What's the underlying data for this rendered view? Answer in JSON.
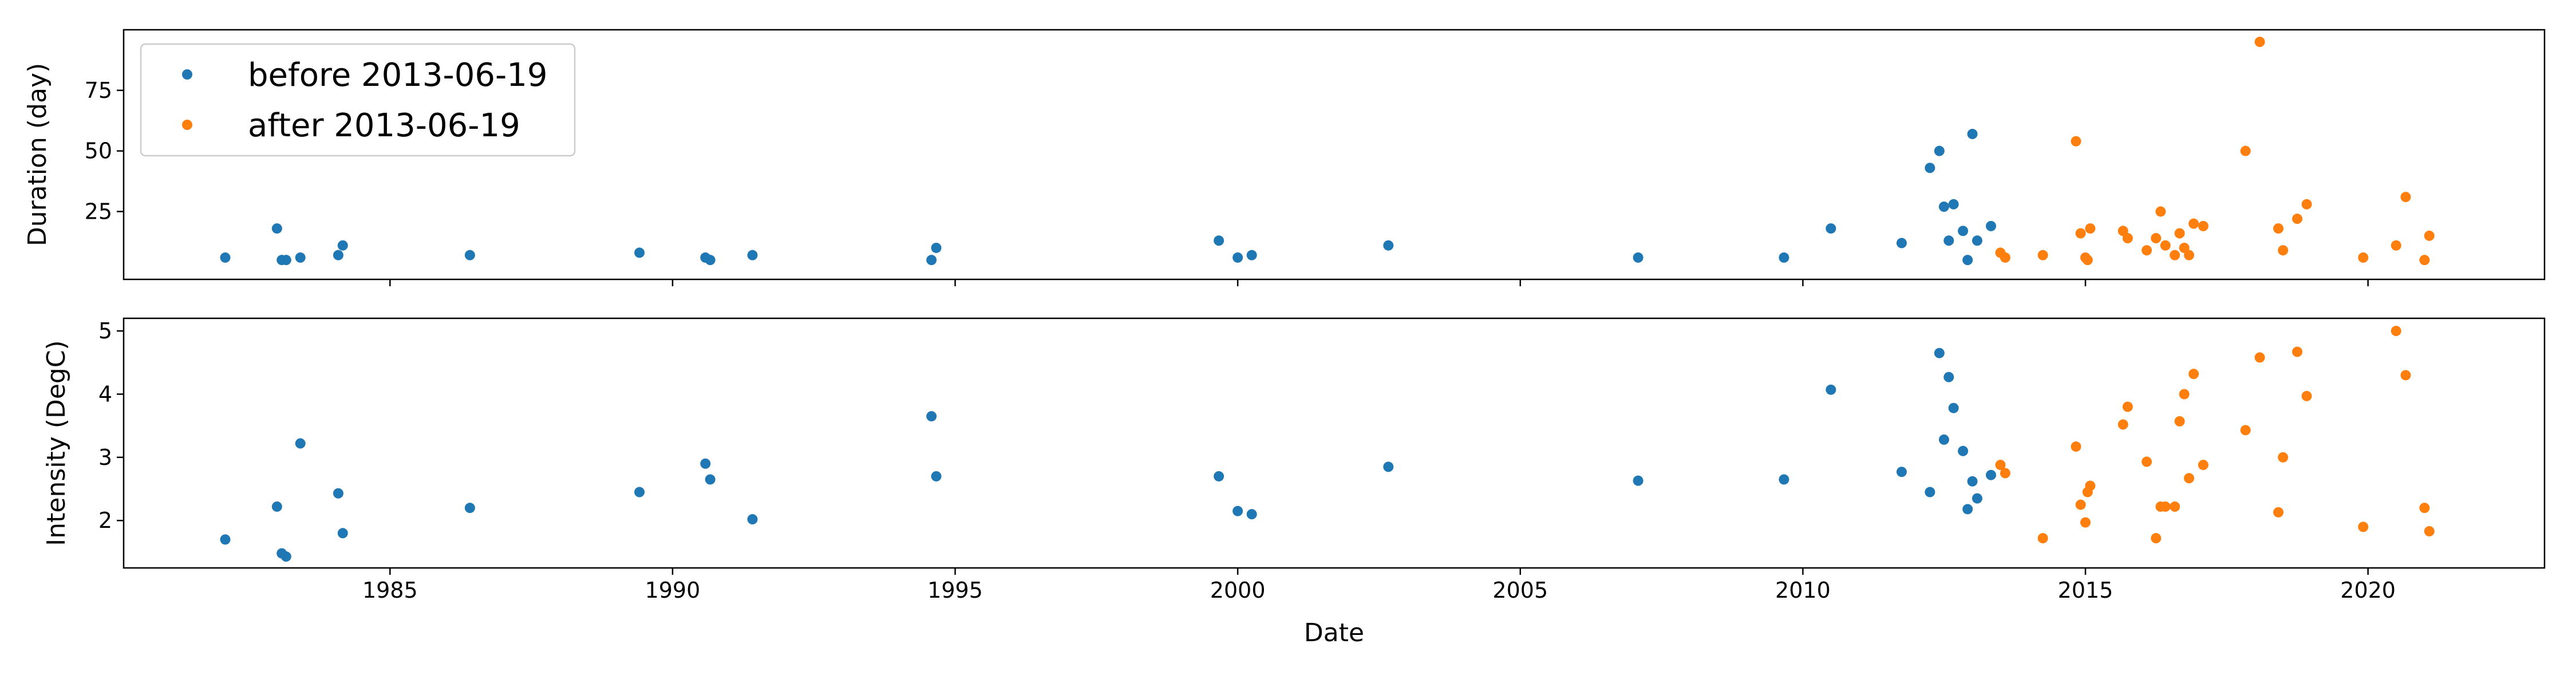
{
  "chart_data": [
    {
      "type": "scatter",
      "xlabel": "Date",
      "ylabel": "Duration (day)",
      "xlim": [
        "1980-04-15",
        "2023-02-15"
      ],
      "ylim": [
        -3,
        100
      ],
      "yticks": [
        25,
        50,
        75
      ],
      "xtick_labels": [
        "1985",
        "1990",
        "1995",
        "2000",
        "2005",
        "2010",
        "2015",
        "2020"
      ],
      "legend": {
        "position": "upper-left"
      },
      "series": [
        {
          "name": "before 2013-06-19",
          "color": "#1f77b4",
          "points": [
            [
              "1982-02-01",
              6
            ],
            [
              "1983-01-01",
              18
            ],
            [
              "1983-02-01",
              5
            ],
            [
              "1983-03-01",
              5
            ],
            [
              "1983-06-01",
              6
            ],
            [
              "1984-02-01",
              7
            ],
            [
              "1984-03-01",
              11
            ],
            [
              "1986-06-01",
              7
            ],
            [
              "1989-06-01",
              8
            ],
            [
              "1990-08-01",
              6
            ],
            [
              "1990-09-01",
              5
            ],
            [
              "1991-06-01",
              7
            ],
            [
              "1994-08-01",
              5
            ],
            [
              "1994-09-01",
              10
            ],
            [
              "1999-09-01",
              13
            ],
            [
              "2000-01-01",
              6
            ],
            [
              "2000-04-01",
              7
            ],
            [
              "2002-09-01",
              11
            ],
            [
              "2007-02-01",
              6
            ],
            [
              "2009-09-01",
              6
            ],
            [
              "2010-07-01",
              18
            ],
            [
              "2011-10-01",
              12
            ],
            [
              "2012-04-01",
              43
            ],
            [
              "2012-06-01",
              50
            ],
            [
              "2012-07-01",
              27
            ],
            [
              "2012-08-01",
              13
            ],
            [
              "2012-09-01",
              28
            ],
            [
              "2012-11-01",
              17
            ],
            [
              "2012-12-01",
              5
            ],
            [
              "2013-01-01",
              57
            ],
            [
              "2013-02-01",
              13
            ],
            [
              "2013-05-01",
              19
            ]
          ]
        },
        {
          "name": "after 2013-06-19",
          "color": "#ff7f0e",
          "points": [
            [
              "2013-07-01",
              8
            ],
            [
              "2013-08-01",
              6
            ],
            [
              "2014-04-01",
              7
            ],
            [
              "2014-11-01",
              54
            ],
            [
              "2014-12-01",
              16
            ],
            [
              "2015-01-01",
              6
            ],
            [
              "2015-01-15",
              5
            ],
            [
              "2015-02-01",
              18
            ],
            [
              "2015-09-01",
              17
            ],
            [
              "2015-10-01",
              14
            ],
            [
              "2016-02-01",
              9
            ],
            [
              "2016-04-01",
              14
            ],
            [
              "2016-05-01",
              25
            ],
            [
              "2016-06-01",
              11
            ],
            [
              "2016-08-01",
              7
            ],
            [
              "2016-09-01",
              16
            ],
            [
              "2016-10-01",
              10
            ],
            [
              "2016-11-01",
              7
            ],
            [
              "2016-12-01",
              20
            ],
            [
              "2017-02-01",
              19
            ],
            [
              "2017-11-01",
              50
            ],
            [
              "2018-02-01",
              95
            ],
            [
              "2018-06-01",
              18
            ],
            [
              "2018-07-01",
              9
            ],
            [
              "2018-10-01",
              22
            ],
            [
              "2018-12-01",
              28
            ],
            [
              "2019-12-01",
              6
            ],
            [
              "2020-07-01",
              11
            ],
            [
              "2020-09-01",
              31
            ],
            [
              "2021-01-01",
              5
            ],
            [
              "2021-02-01",
              15
            ]
          ]
        }
      ]
    },
    {
      "type": "scatter",
      "xlabel": "Date",
      "ylabel": "Intensity (DegC)",
      "xlim": [
        "1980-04-15",
        "2023-02-15"
      ],
      "ylim": [
        1.25,
        5.2
      ],
      "yticks": [
        2,
        3,
        4,
        5
      ],
      "xtick_labels": [
        "1985",
        "1990",
        "1995",
        "2000",
        "2005",
        "2010",
        "2015",
        "2020"
      ],
      "series": [
        {
          "name": "before 2013-06-19",
          "color": "#1f77b4",
          "points": [
            [
              "1982-02-01",
              1.7
            ],
            [
              "1983-01-01",
              2.22
            ],
            [
              "1983-02-01",
              1.48
            ],
            [
              "1983-03-01",
              1.43
            ],
            [
              "1983-06-01",
              3.22
            ],
            [
              "1984-02-01",
              2.43
            ],
            [
              "1984-03-01",
              1.8
            ],
            [
              "1986-06-01",
              2.2
            ],
            [
              "1989-06-01",
              2.45
            ],
            [
              "1990-08-01",
              2.9
            ],
            [
              "1990-09-01",
              2.65
            ],
            [
              "1991-06-01",
              2.02
            ],
            [
              "1994-08-01",
              3.65
            ],
            [
              "1994-09-01",
              2.7
            ],
            [
              "1999-09-01",
              2.7
            ],
            [
              "2000-01-01",
              2.15
            ],
            [
              "2000-04-01",
              2.1
            ],
            [
              "2002-09-01",
              2.85
            ],
            [
              "2007-02-01",
              2.63
            ],
            [
              "2009-09-01",
              2.65
            ],
            [
              "2010-07-01",
              4.07
            ],
            [
              "2011-10-01",
              2.77
            ],
            [
              "2012-04-01",
              2.45
            ],
            [
              "2012-06-01",
              4.65
            ],
            [
              "2012-07-01",
              3.28
            ],
            [
              "2012-08-01",
              4.27
            ],
            [
              "2012-09-01",
              3.78
            ],
            [
              "2012-11-01",
              3.1
            ],
            [
              "2012-12-01",
              2.18
            ],
            [
              "2013-01-01",
              2.62
            ],
            [
              "2013-02-01",
              2.35
            ],
            [
              "2013-05-01",
              2.72
            ]
          ]
        },
        {
          "name": "after 2013-06-19",
          "color": "#ff7f0e",
          "points": [
            [
              "2013-07-01",
              2.88
            ],
            [
              "2013-08-01",
              2.75
            ],
            [
              "2014-04-01",
              1.72
            ],
            [
              "2014-11-01",
              3.17
            ],
            [
              "2014-12-01",
              2.25
            ],
            [
              "2015-01-01",
              1.97
            ],
            [
              "2015-01-15",
              2.45
            ],
            [
              "2015-02-01",
              2.55
            ],
            [
              "2015-09-01",
              3.52
            ],
            [
              "2015-10-01",
              3.8
            ],
            [
              "2016-02-01",
              2.93
            ],
            [
              "2016-04-01",
              1.72
            ],
            [
              "2016-05-01",
              2.22
            ],
            [
              "2016-06-01",
              2.22
            ],
            [
              "2016-08-01",
              2.22
            ],
            [
              "2016-09-01",
              3.57
            ],
            [
              "2016-10-01",
              4.0
            ],
            [
              "2016-11-01",
              2.67
            ],
            [
              "2016-12-01",
              4.32
            ],
            [
              "2017-02-01",
              2.88
            ],
            [
              "2017-11-01",
              3.43
            ],
            [
              "2018-02-01",
              4.58
            ],
            [
              "2018-06-01",
              2.13
            ],
            [
              "2018-07-01",
              3.0
            ],
            [
              "2018-10-01",
              4.67
            ],
            [
              "2018-12-01",
              3.97
            ],
            [
              "2019-12-01",
              1.9
            ],
            [
              "2020-07-01",
              5.0
            ],
            [
              "2020-09-01",
              4.3
            ],
            [
              "2021-01-01",
              2.2
            ],
            [
              "2021-02-01",
              1.83
            ]
          ]
        }
      ]
    }
  ]
}
